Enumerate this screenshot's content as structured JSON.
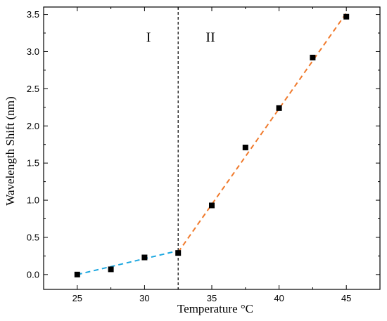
{
  "chart_data": {
    "type": "scatter",
    "title": "",
    "xlabel": "Temperature °C",
    "ylabel": "Wavelength Shift (nm)",
    "xlim": [
      22.5,
      47.5
    ],
    "ylim": [
      -0.2,
      3.6
    ],
    "x_ticks": [
      25,
      30,
      35,
      40,
      45
    ],
    "x_tick_labels": [
      "25",
      "30",
      "35",
      "40",
      "45"
    ],
    "y_ticks": [
      0.0,
      0.5,
      1.0,
      1.5,
      2.0,
      2.5,
      3.0,
      3.5
    ],
    "y_tick_labels": [
      "0.0",
      "0.5",
      "1.0",
      "1.5",
      "2.0",
      "2.5",
      "3.0",
      "3.5"
    ],
    "grid": false,
    "legend": "none",
    "series": [
      {
        "marker": "square",
        "color": "#000000",
        "x": [
          25,
          27.5,
          30,
          32.5,
          35,
          37.5,
          40,
          42.5,
          45
        ],
        "y": [
          0.0,
          0.07,
          0.23,
          0.29,
          0.93,
          1.71,
          2.24,
          2.92,
          3.47
        ]
      }
    ],
    "fit_lines": [
      {
        "color": "#1ba7e0",
        "style": "dashed",
        "x": [
          25,
          32.5
        ],
        "y": [
          0.0,
          0.32
        ]
      },
      {
        "color": "#f07a2c",
        "style": "dashed",
        "x": [
          32.5,
          45
        ],
        "y": [
          0.3,
          3.52
        ]
      }
    ],
    "vertical_line": {
      "x": 32.5,
      "color": "#000000",
      "style": "dashed"
    },
    "region_labels": [
      {
        "text": "I",
        "x": 30.3,
        "y": 3.2
      },
      {
        "text": "II",
        "x": 34.9,
        "y": 3.2
      }
    ]
  }
}
